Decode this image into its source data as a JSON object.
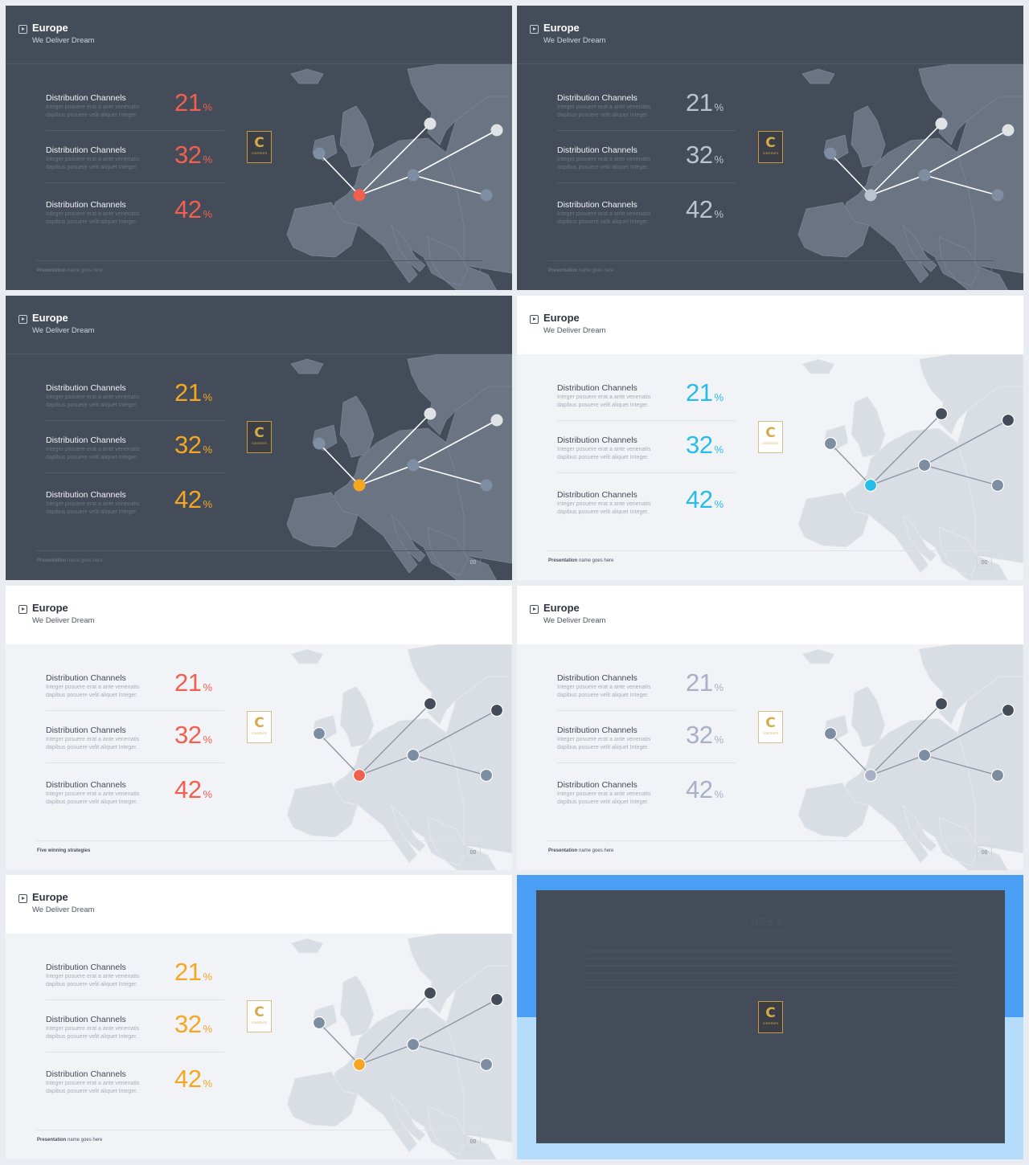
{
  "slides": [
    {
      "theme": "dark",
      "accent": "#f0604f",
      "title": "Europe",
      "subtitle": "We Deliver Dream",
      "stats": [
        {
          "label": "Distribution Channels",
          "desc": "Integer posuere erat a ante venenatis dapibus posuere velit aliquet Integer.",
          "value": "21",
          "unit": "%"
        },
        {
          "label": "Distribution Channels",
          "desc": "Integer posuere erat a ante venenatis dapibus posuere velit aliquet Integer.",
          "value": "32",
          "unit": "%"
        },
        {
          "label": "Distribution Channels",
          "desc": "Integer posuere erat a ante venenatis dapibus posuere velit aliquet Integer.",
          "value": "42",
          "unit": "%"
        }
      ],
      "logo": {
        "letter": "C",
        "text": "CONTENTS"
      },
      "footer": {
        "bold": "Presentation",
        "rest": " name goes here"
      },
      "page": ""
    },
    {
      "theme": "dark",
      "accent": "#bac3d0",
      "title": "Europe",
      "subtitle": "We Deliver Dream",
      "stats": [
        {
          "label": "Distribution Channels",
          "desc": "Integer posuere erat a ante venenatis dapibus posuere velit aliquet Integer.",
          "value": "21",
          "unit": "%"
        },
        {
          "label": "Distribution Channels",
          "desc": "Integer posuere erat a ante venenatis dapibus posuere velit aliquet Integer.",
          "value": "32",
          "unit": "%"
        },
        {
          "label": "Distribution Channels",
          "desc": "Integer posuere erat a ante venenatis dapibus posuere velit aliquet Integer.",
          "value": "42",
          "unit": "%"
        }
      ],
      "logo": {
        "letter": "C",
        "text": "CONTENTS"
      },
      "footer": {
        "bold": "Presentation",
        "rest": " name goes here"
      },
      "page": ""
    },
    {
      "theme": "dark",
      "accent": "#f5a623",
      "title": "Europe",
      "subtitle": "We Deliver Dream",
      "stats": [
        {
          "label": "Distribution Channels",
          "desc": "Integer posuere erat a ante venenatis dapibus posuere velit aliquet Integer.",
          "value": "21",
          "unit": "%"
        },
        {
          "label": "Distribution Channels",
          "desc": "Integer posuere erat a ante venenatis dapibus posuere velit aliquet Integer.",
          "value": "32",
          "unit": "%"
        },
        {
          "label": "Distribution Channels",
          "desc": "Integer posuere erat a ante venenatis dapibus posuere velit aliquet Integer.",
          "value": "42",
          "unit": "%"
        }
      ],
      "logo": {
        "letter": "C",
        "text": "CONTENTS"
      },
      "footer": {
        "bold": "Presentation",
        "rest": " name goes here"
      },
      "page": "00"
    },
    {
      "theme": "light",
      "accent": "#27bde6",
      "title": "Europe",
      "subtitle": "We Deliver Dream",
      "stats": [
        {
          "label": "Distribution Channels",
          "desc": "Integer posuere erat a ante venenatis dapibus posuere velit aliquet Integer.",
          "value": "21",
          "unit": "%"
        },
        {
          "label": "Distribution Channels",
          "desc": "Integer posuere erat a ante venenatis dapibus posuere velit aliquet Integer.",
          "value": "32",
          "unit": "%"
        },
        {
          "label": "Distribution Channels",
          "desc": "Integer posuere erat a ante venenatis dapibus posuere velit aliquet Integer.",
          "value": "42",
          "unit": "%"
        }
      ],
      "logo": {
        "letter": "C",
        "text": "CONTENTS"
      },
      "footer": {
        "bold": "Presentation",
        "rest": " name goes here"
      },
      "page": "00"
    },
    {
      "theme": "light",
      "accent": "#f0604f",
      "title": "Europe",
      "subtitle": "We Deliver Dream",
      "stats": [
        {
          "label": "Distribution Channels",
          "desc": "Integer posuere erat a ante venenatis dapibus posuere velit aliquet Integer.",
          "value": "21",
          "unit": "%"
        },
        {
          "label": "Distribution Channels",
          "desc": "Integer posuere erat a ante venenatis dapibus posuere velit aliquet Integer.",
          "value": "32",
          "unit": "%"
        },
        {
          "label": "Distribution Channels",
          "desc": "Integer posuere erat a ante venenatis dapibus posuere velit aliquet Integer.",
          "value": "42",
          "unit": "%"
        }
      ],
      "logo": {
        "letter": "C",
        "text": "CONTENTS"
      },
      "footer": {
        "bold": "Five winning strategies",
        "rest": ""
      },
      "page": "00"
    },
    {
      "theme": "light",
      "accent": "#a9b0c5",
      "title": "Europe",
      "subtitle": "We Deliver Dream",
      "stats": [
        {
          "label": "Distribution Channels",
          "desc": "Integer posuere erat a ante venenatis dapibus posuere velit aliquet Integer.",
          "value": "21",
          "unit": "%"
        },
        {
          "label": "Distribution Channels",
          "desc": "Integer posuere erat a ante venenatis dapibus posuere velit aliquet Integer.",
          "value": "32",
          "unit": "%"
        },
        {
          "label": "Distribution Channels",
          "desc": "Integer posuere erat a ante venenatis dapibus posuere velit aliquet Integer.",
          "value": "42",
          "unit": "%"
        }
      ],
      "logo": {
        "letter": "C",
        "text": "CONTENTS"
      },
      "footer": {
        "bold": "Presentation",
        "rest": " name goes here"
      },
      "page": "00"
    },
    {
      "theme": "light",
      "accent": "#f5a623",
      "title": "Europe",
      "subtitle": "We Deliver Dream",
      "stats": [
        {
          "label": "Distribution Channels",
          "desc": "Integer posuere erat a ante venenatis dapibus posuere velit aliquet Integer.",
          "value": "21",
          "unit": "%"
        },
        {
          "label": "Distribution Channels",
          "desc": "Integer posuere erat a ante venenatis dapibus posuere velit aliquet Integer.",
          "value": "32",
          "unit": "%"
        },
        {
          "label": "Distribution Channels",
          "desc": "Integer posuere erat a ante venenatis dapibus posuere velit aliquet Integer.",
          "value": "42",
          "unit": "%"
        }
      ],
      "logo": {
        "letter": "C",
        "text": "CONTENTS"
      },
      "footer": {
        "bold": "Presentation",
        "rest": " name goes here"
      },
      "page": "00"
    }
  ],
  "copyright": {
    "title": "저작권 공고",
    "subtitle": "Copyright Notice",
    "logo": {
      "letter": "C",
      "text": "CONTENTS"
    }
  }
}
